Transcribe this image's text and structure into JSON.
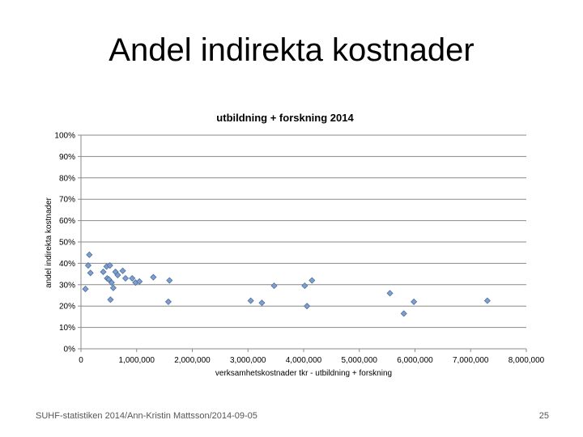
{
  "slide": {
    "title": "Andel indirekta kostnader",
    "footer": "SUHF-statistiken 2014/Ann-Kristin Mattsson/2014-09-05",
    "page_number": "25"
  },
  "chart_data": {
    "type": "scatter",
    "title": "utbildning + forskning 2014",
    "xlabel": "verksamhetskostnader tkr - utbildning + forskning",
    "ylabel": "andel indirekta kostnader",
    "xlim": [
      0,
      8000000
    ],
    "ylim": [
      0,
      1
    ],
    "x_ticks": [
      0,
      1000000,
      2000000,
      3000000,
      4000000,
      5000000,
      6000000,
      7000000,
      8000000
    ],
    "x_tick_labels": [
      "0",
      "1,000,000",
      "2,000,000",
      "3,000,000",
      "4,000,000",
      "5,000,000",
      "6,000,000",
      "7,000,000",
      "8,000,000"
    ],
    "y_ticks": [
      0,
      0.1,
      0.2,
      0.3,
      0.4,
      0.5,
      0.6,
      0.7,
      0.8,
      0.9,
      1.0
    ],
    "y_tick_labels": [
      "0%",
      "10%",
      "20%",
      "30%",
      "40%",
      "50%",
      "60%",
      "70%",
      "80%",
      "90%",
      "100%"
    ],
    "grid": "horizontal",
    "marker_color": "#7f9fcf",
    "marker_edge": "#4f6f9f",
    "points": [
      {
        "x": 80000,
        "y": 0.28
      },
      {
        "x": 130000,
        "y": 0.39
      },
      {
        "x": 150000,
        "y": 0.44
      },
      {
        "x": 170000,
        "y": 0.355
      },
      {
        "x": 400000,
        "y": 0.36
      },
      {
        "x": 460000,
        "y": 0.385
      },
      {
        "x": 470000,
        "y": 0.33
      },
      {
        "x": 500000,
        "y": 0.325
      },
      {
        "x": 520000,
        "y": 0.39
      },
      {
        "x": 530000,
        "y": 0.23
      },
      {
        "x": 550000,
        "y": 0.31
      },
      {
        "x": 580000,
        "y": 0.285
      },
      {
        "x": 620000,
        "y": 0.36
      },
      {
        "x": 660000,
        "y": 0.345
      },
      {
        "x": 750000,
        "y": 0.365
      },
      {
        "x": 800000,
        "y": 0.33
      },
      {
        "x": 920000,
        "y": 0.33
      },
      {
        "x": 980000,
        "y": 0.31
      },
      {
        "x": 1050000,
        "y": 0.315
      },
      {
        "x": 1300000,
        "y": 0.335
      },
      {
        "x": 1570000,
        "y": 0.22
      },
      {
        "x": 1590000,
        "y": 0.32
      },
      {
        "x": 3050000,
        "y": 0.225
      },
      {
        "x": 3250000,
        "y": 0.215
      },
      {
        "x": 3470000,
        "y": 0.295
      },
      {
        "x": 4020000,
        "y": 0.295
      },
      {
        "x": 4060000,
        "y": 0.2
      },
      {
        "x": 4150000,
        "y": 0.32
      },
      {
        "x": 5550000,
        "y": 0.26
      },
      {
        "x": 5800000,
        "y": 0.165
      },
      {
        "x": 5980000,
        "y": 0.22
      },
      {
        "x": 7300000,
        "y": 0.225
      }
    ]
  }
}
